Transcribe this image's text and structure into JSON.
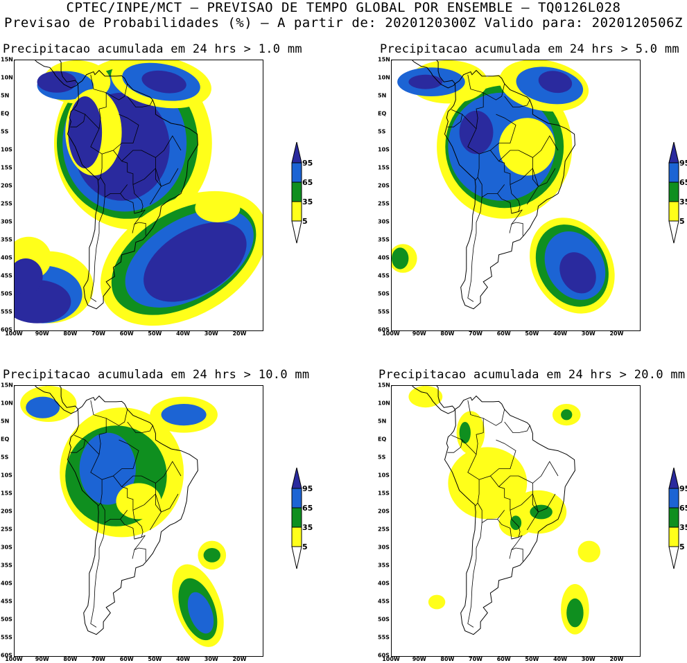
{
  "header": {
    "line1": "CPTEC/INPE/MCT — PREVISAO DE TEMPO GLOBAL POR ENSEMBLE — TQ0126L028",
    "line2": "Previsao de Probabilidades (%) —  A partir de: 2020120300Z  Valido para: 2020120506Z"
  },
  "axes": {
    "lat_labels": [
      "15N",
      "10N",
      "5N",
      "EQ",
      "5S",
      "10S",
      "15S",
      "20S",
      "25S",
      "30S",
      "35S",
      "40S",
      "45S",
      "50S",
      "55S",
      "60S"
    ],
    "lon_labels": [
      "100W",
      "90W",
      "80W",
      "70W",
      "60W",
      "50W",
      "40W",
      "30W",
      "20W"
    ]
  },
  "legend": {
    "levels": [
      "95",
      "65",
      "35",
      "5"
    ],
    "colors": {
      "p95": "#2a2a9e",
      "p65": "#1c64d4",
      "p35": "#0f8f1f",
      "p5": "#ffff1a"
    }
  },
  "panels": [
    {
      "title": "Precipitacao acumulada em 24 hrs > 1.0 mm"
    },
    {
      "title": "Precipitacao acumulada em 24 hrs > 5.0 mm"
    },
    {
      "title": "Precipitacao acumulada em 24 hrs > 10.0 mm"
    },
    {
      "title": "Precipitacao acumulada em 24 hrs > 20.0 mm"
    }
  ]
}
